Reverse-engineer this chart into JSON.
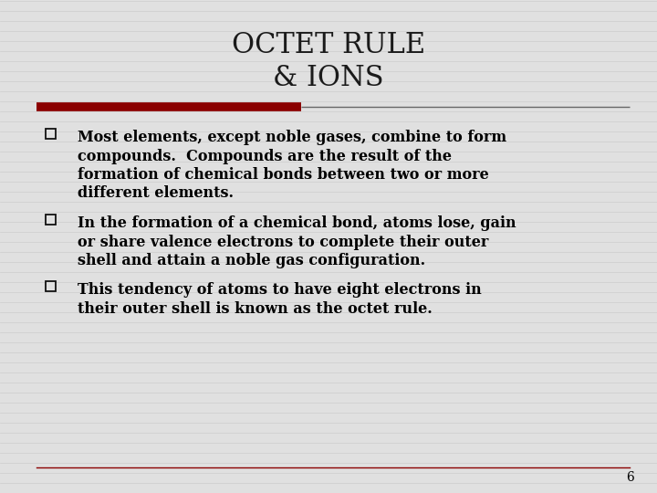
{
  "title_line1": "OCTET RULE",
  "title_line2": "& IONS",
  "title_fontsize": 22,
  "title_color": "#1a1a1a",
  "background_color": "#e0e0e0",
  "stripe_color": "#cccccc",
  "divider_color_left": "#8b0000",
  "divider_color_right": "#666666",
  "body_fontsize": 11.5,
  "body_color": "#000000",
  "checkbox_color": "#111111",
  "checkbox_fill": "#e0e0e0",
  "bullet1_lines": [
    "Most elements, except noble gases, combine to form",
    "compounds.  Compounds are the result of the",
    "formation of chemical bonds between two or more",
    "different elements."
  ],
  "bullet2_lines": [
    "In the formation of a chemical bond, atoms lose, gain",
    "or share valence electrons to complete their outer",
    "shell and attain a noble gas configuration."
  ],
  "bullet3_lines": [
    "This tendency of atoms to have eight electrons in",
    "their outer shell is known as the octet rule."
  ],
  "page_number": "6",
  "bottom_line_color": "#8b0000"
}
